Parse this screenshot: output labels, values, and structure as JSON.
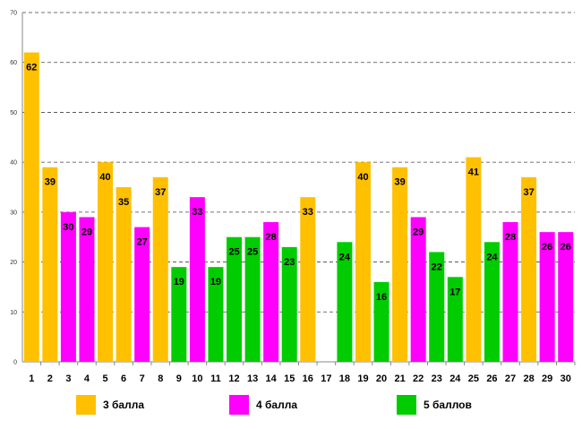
{
  "chart_data": {
    "type": "bar",
    "title": "",
    "xlabel": "",
    "ylabel": "",
    "ylim": [
      0,
      70
    ],
    "yticks": [
      0,
      10,
      20,
      30,
      40,
      50,
      60,
      70
    ],
    "grid": true,
    "categories": [
      "1",
      "2",
      "3",
      "4",
      "5",
      "6",
      "7",
      "8",
      "9",
      "10",
      "11",
      "12",
      "13",
      "14",
      "15",
      "16",
      "17",
      "18",
      "19",
      "20",
      "21",
      "22",
      "23",
      "24",
      "25",
      "26",
      "27",
      "28",
      "29",
      "30"
    ],
    "values": [
      62,
      39,
      30,
      29,
      40,
      35,
      27,
      37,
      19,
      33,
      19,
      25,
      25,
      28,
      23,
      33,
      null,
      24,
      40,
      16,
      39,
      29,
      22,
      17,
      41,
      24,
      28,
      37,
      26,
      26
    ],
    "series_index": [
      0,
      0,
      1,
      1,
      0,
      0,
      1,
      0,
      2,
      1,
      2,
      2,
      2,
      1,
      2,
      0,
      null,
      2,
      0,
      2,
      0,
      1,
      2,
      2,
      0,
      2,
      1,
      0,
      1,
      1
    ],
    "series": [
      {
        "name": "3 балла",
        "color": "#FFC000"
      },
      {
        "name": "4 балла",
        "color": "#FF00FF"
      },
      {
        "name": "5 баллов",
        "color": "#00CC00"
      }
    ],
    "legend_position": "bottom"
  }
}
